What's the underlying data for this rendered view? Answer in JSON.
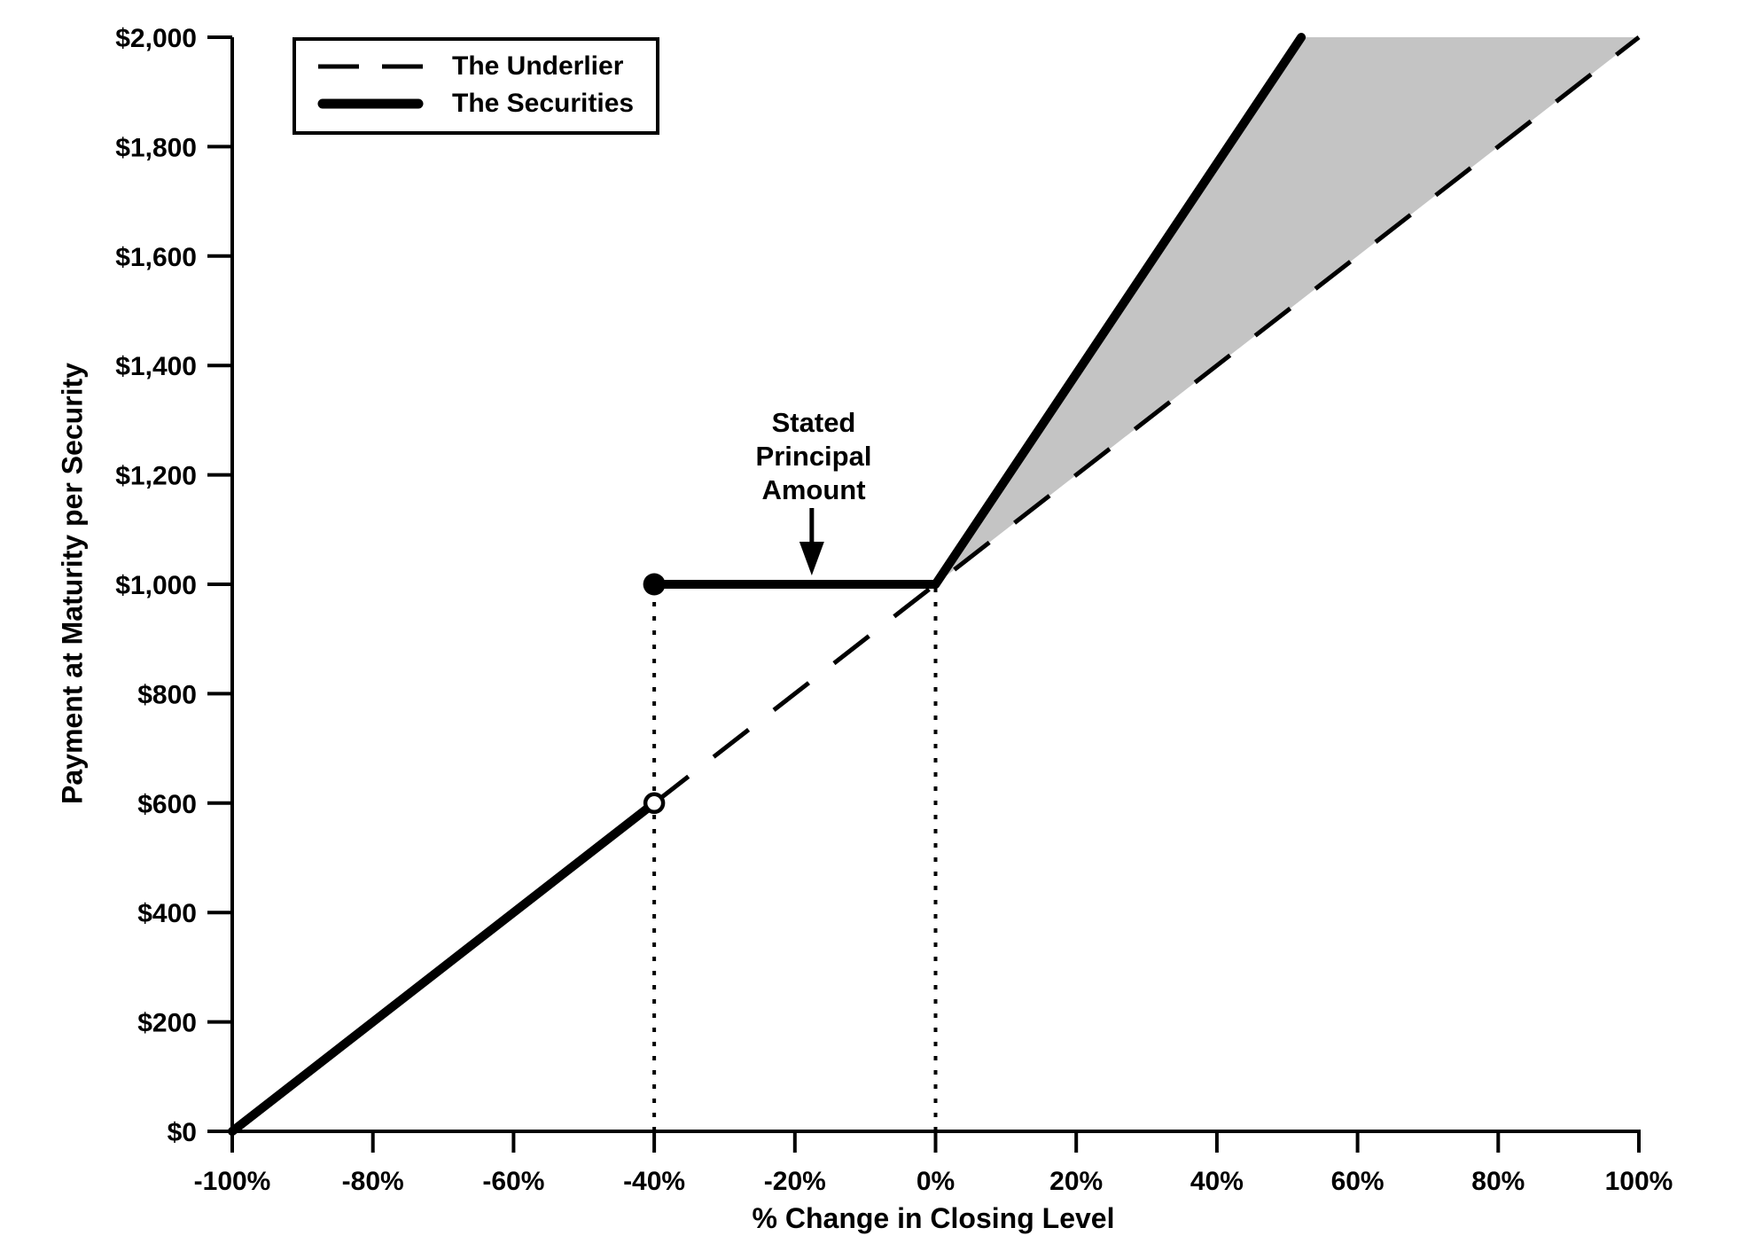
{
  "chart_data": {
    "type": "line",
    "xlabel": "% Change in Closing Level",
    "ylabel": "Payment at Maturity per Security",
    "xlim": [
      -100,
      100
    ],
    "ylim": [
      0,
      2000
    ],
    "grid": false,
    "x_ticks": {
      "values": [
        -100,
        -80,
        -60,
        -40,
        -20,
        0,
        20,
        40,
        60,
        80,
        100
      ],
      "labels": [
        "-100%",
        "-80%",
        "-60%",
        "-40%",
        "-20%",
        "0%",
        "20%",
        "40%",
        "60%",
        "80%",
        "100%"
      ]
    },
    "y_ticks": {
      "values": [
        0,
        200,
        400,
        600,
        800,
        1000,
        1200,
        1400,
        1600,
        1800,
        2000
      ],
      "labels": [
        "$0",
        "$200",
        "$400",
        "$600",
        "$800",
        "$1,000",
        "$1,200",
        "$1,400",
        "$1,600",
        "$1,800",
        "$2,000"
      ]
    },
    "legend": {
      "position": "top-left",
      "entries": [
        {
          "label": "The Underlier",
          "style": "dashed"
        },
        {
          "label": "The Securities",
          "style": "solid-thick"
        }
      ]
    },
    "series": [
      {
        "name": "The Underlier",
        "style": "dashed",
        "segments": [
          [
            [
              -100,
              0
            ],
            [
              100,
              2000
            ]
          ]
        ]
      },
      {
        "name": "The Securities",
        "style": "solid-thick",
        "segments": [
          [
            [
              -100,
              0
            ],
            [
              -40,
              600
            ]
          ],
          [
            [
              -40,
              1000
            ],
            [
              0,
              1000
            ],
            [
              52,
              2000
            ]
          ]
        ]
      }
    ],
    "markers": [
      {
        "type": "open-circle",
        "x": -40,
        "y": 600
      },
      {
        "type": "filled-circle",
        "x": -40,
        "y": 1000
      }
    ],
    "guide_lines": [
      {
        "style": "dotted-vertical",
        "x": -40,
        "y_from": 0,
        "y_to": 1000
      },
      {
        "style": "dotted-vertical",
        "x": 0,
        "y_from": 0,
        "y_to": 1000
      }
    ],
    "shaded_region": {
      "vertices": [
        [
          0,
          1000
        ],
        [
          52,
          2000
        ],
        [
          100,
          2000
        ]
      ],
      "color": "#c4c4c4"
    },
    "annotation": {
      "text": [
        "Stated",
        "Principal",
        "Amount"
      ],
      "points_to": {
        "x": -17.6,
        "y": 1000
      }
    },
    "colors": {
      "foreground": "#000000",
      "background": "#ffffff",
      "shaded_area": "#c4c4c4"
    }
  }
}
